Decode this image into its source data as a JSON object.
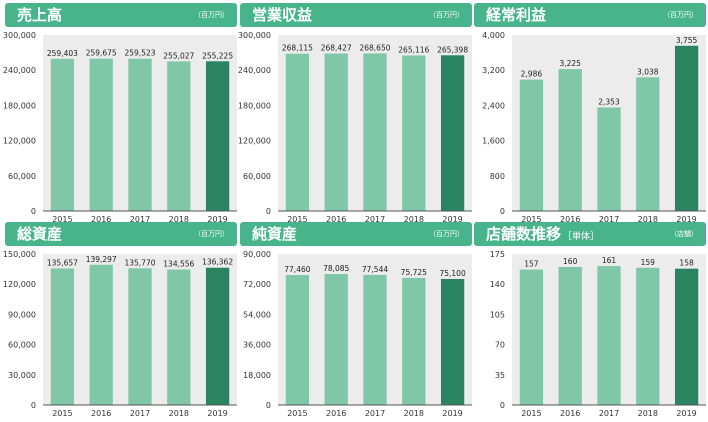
{
  "colors": {
    "header": "#48b48b",
    "plot_bg": "#ececec",
    "bar": "#7fc7a6",
    "bar_highlight": "#2b8461",
    "axis": "#555555"
  },
  "chart_data": [
    {
      "type": "bar",
      "title": "売上高",
      "subtitle": "",
      "unit": "（百万円）",
      "categories": [
        "2015",
        "2016",
        "2017",
        "2018",
        "2019"
      ],
      "values": [
        259403,
        259675,
        259523,
        255027,
        255225
      ],
      "value_labels": [
        "259,403",
        "259,675",
        "259,523",
        "255,027",
        "255,225"
      ],
      "ylim": [
        0,
        300000
      ],
      "yticks": [
        0,
        60000,
        120000,
        180000,
        240000,
        300000
      ],
      "ytick_labels": [
        "0",
        "60,000",
        "120,000",
        "180,000",
        "240,000",
        "300,000"
      ],
      "highlight_index": 4
    },
    {
      "type": "bar",
      "title": "営業収益",
      "subtitle": "",
      "unit": "（百万円）",
      "categories": [
        "2015",
        "2016",
        "2017",
        "2018",
        "2019"
      ],
      "values": [
        268115,
        268427,
        268650,
        265116,
        265398
      ],
      "value_labels": [
        "268,115",
        "268,427",
        "268,650",
        "265,116",
        "265,398"
      ],
      "ylim": [
        0,
        300000
      ],
      "yticks": [
        0,
        60000,
        120000,
        180000,
        240000,
        300000
      ],
      "ytick_labels": [
        "0",
        "60,000",
        "120,000",
        "180,000",
        "240,000",
        "300,000"
      ],
      "highlight_index": 4
    },
    {
      "type": "bar",
      "title": "経常利益",
      "subtitle": "",
      "unit": "（百万円）",
      "categories": [
        "2015",
        "2016",
        "2017",
        "2018",
        "2019"
      ],
      "values": [
        2986,
        3225,
        2353,
        3038,
        3755
      ],
      "value_labels": [
        "2,986",
        "3,225",
        "2,353",
        "3,038",
        "3,755"
      ],
      "ylim": [
        0,
        4000
      ],
      "yticks": [
        0,
        800,
        1600,
        2400,
        3200,
        4000
      ],
      "ytick_labels": [
        "0",
        "800",
        "1,600",
        "2,400",
        "3,200",
        "4,000"
      ],
      "highlight_index": 4
    },
    {
      "type": "bar",
      "title": "総資産",
      "subtitle": "",
      "unit": "（百万円）",
      "categories": [
        "2015",
        "2016",
        "2017",
        "2018",
        "2019"
      ],
      "values": [
        135657,
        139297,
        135770,
        134556,
        136362
      ],
      "value_labels": [
        "135,657",
        "139,297",
        "135,770",
        "134,556",
        "136,362"
      ],
      "ylim": [
        0,
        150000
      ],
      "yticks": [
        0,
        30000,
        60000,
        90000,
        120000,
        150000
      ],
      "ytick_labels": [
        "0",
        "30,000",
        "60,000",
        "90,000",
        "120,000",
        "150,000"
      ],
      "highlight_index": 4
    },
    {
      "type": "bar",
      "title": "純資産",
      "subtitle": "",
      "unit": "（百万円）",
      "categories": [
        "2015",
        "2016",
        "2017",
        "2018",
        "2019"
      ],
      "values": [
        77460,
        78085,
        77544,
        75725,
        75100
      ],
      "value_labels": [
        "77,460",
        "78,085",
        "77,544",
        "75,725",
        "75,100"
      ],
      "ylim": [
        0,
        90000
      ],
      "yticks": [
        0,
        18000,
        36000,
        54000,
        72000,
        90000
      ],
      "ytick_labels": [
        "0",
        "18,000",
        "36,000",
        "54,000",
        "72,000",
        "90,000"
      ],
      "highlight_index": 4
    },
    {
      "type": "bar",
      "title": "店舗数推移",
      "subtitle": "［単体］",
      "unit": "（店舗）",
      "categories": [
        "2015",
        "2016",
        "2017",
        "2018",
        "2019"
      ],
      "values": [
        157,
        160,
        161,
        159,
        158
      ],
      "value_labels": [
        "157",
        "160",
        "161",
        "159",
        "158"
      ],
      "ylim": [
        0,
        175
      ],
      "yticks": [
        0,
        35,
        70,
        105,
        140,
        175
      ],
      "ytick_labels": [
        "0",
        "35",
        "70",
        "105",
        "140",
        "175"
      ],
      "highlight_index": 4
    }
  ]
}
